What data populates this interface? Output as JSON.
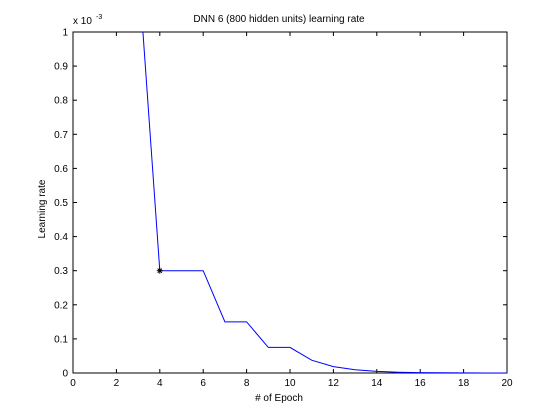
{
  "chart_data": {
    "type": "line",
    "title": "DNN 6 (800 hidden units) learning rate",
    "xlabel": "# of Epoch",
    "ylabel": "Learning rate",
    "y_multiplier_base": "x 10",
    "y_multiplier_exponent": "-3",
    "xlim": [
      0,
      20
    ],
    "ylim": [
      0,
      1
    ],
    "xticks": [
      "0",
      "2",
      "4",
      "6",
      "8",
      "10",
      "12",
      "14",
      "16",
      "18",
      "20"
    ],
    "yticks": [
      "0",
      "0.1",
      "0.2",
      "0.3",
      "0.4",
      "0.5",
      "0.6",
      "0.7",
      "0.8",
      "0.9",
      "1"
    ],
    "grid": false,
    "series": [
      {
        "color": "#0000ff",
        "x": [
          3,
          4,
          5,
          6,
          7,
          8,
          9,
          10,
          11,
          12,
          13,
          14,
          15,
          16,
          17,
          18,
          19,
          20
        ],
        "y": [
          1.2,
          0.3,
          0.3,
          0.3,
          0.15,
          0.15,
          0.075,
          0.075,
          0.0375,
          0.01875,
          0.009375,
          0.0046875,
          0.0023,
          0.0012,
          0.0006,
          0.0003,
          0.00015,
          7e-05
        ]
      }
    ],
    "marker": {
      "x": 4,
      "y": 0.3,
      "symbol": "*"
    }
  }
}
